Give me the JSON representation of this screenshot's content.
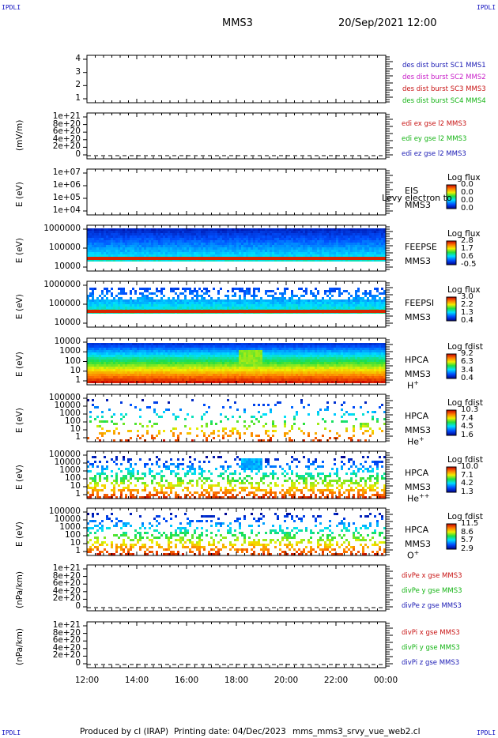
{
  "header": {
    "title": "MMS3",
    "datetime": "20/Sep/2021 12:00",
    "corner": "IPDLI"
  },
  "footer": {
    "produced_by": "Produced by cl (IRAP)",
    "printing_date": "Printing date: 04/Dec/2023",
    "filename": "mms_mms3_srvy_vue_web2.cl"
  },
  "colors": {
    "sc1": "#1a1ab4",
    "sc2": "#c81ec8",
    "sc3": "#c81414",
    "sc4": "#14b414",
    "x": "#c81414",
    "y": "#14b414",
    "z": "#1a1ab4"
  },
  "chart_data": [
    {
      "type": "line",
      "name": "burst-panel",
      "ylim": [
        0.5,
        4.5
      ],
      "ticks": [
        "4",
        "3",
        "2",
        "1"
      ],
      "legend": [
        {
          "label": "des dist burst SC1 MMS1",
          "color": "sc1"
        },
        {
          "label": "des dist burst SC2 MMS2",
          "color": "sc2"
        },
        {
          "label": "des dist burst SC3 MMS3",
          "color": "sc3"
        },
        {
          "label": "des dist burst SC4 MMS4",
          "color": "sc4"
        }
      ]
    },
    {
      "type": "line",
      "name": "edi-efield-panel",
      "ylabel": "(mV/m)",
      "ticks": [
        "1e+21",
        "8e+20",
        "6e+20",
        "4e+20",
        "2e+20",
        "0"
      ],
      "series": [
        {
          "name": "edi ex gse l2 MMS3",
          "color": "x"
        },
        {
          "name": "edi ey gse l2 MMS3",
          "color": "y"
        },
        {
          "name": "edi ez gse l2 MMS3",
          "color": "z"
        }
      ]
    },
    {
      "type": "heatmap",
      "name": "eis-panel",
      "ylabel": "E (eV)",
      "scale": "log",
      "ticks": [
        "1e+07",
        "1e+06",
        "1e+05",
        "1e+04"
      ],
      "side": [
        "EIS",
        "MMS3"
      ],
      "overlay_text": "Levy electron to",
      "colorbar_title": "Log flux",
      "colorbar_ticks": [
        "0.0",
        "0.0",
        "0.0",
        "0.0"
      ]
    },
    {
      "type": "heatmap",
      "name": "feeps-electron-panel",
      "ylabel": "E (eV)",
      "scale": "log",
      "ylim": [
        10000,
        1000000
      ],
      "ticks": [
        "1000000",
        "100000",
        "10000"
      ],
      "side": [
        "FEEPSE",
        "MMS3"
      ],
      "colorbar_title": "Log flux",
      "colorbar_ticks": [
        "2.8",
        "1.7",
        "0.6",
        "-0.5"
      ]
    },
    {
      "type": "heatmap",
      "name": "feeps-ion-panel",
      "ylabel": "E (eV)",
      "scale": "log",
      "ylim": [
        10000,
        1000000
      ],
      "ticks": [
        "1000000",
        "100000",
        "10000"
      ],
      "side": [
        "FEEPSI",
        "MMS3"
      ],
      "colorbar_title": "Log flux",
      "colorbar_ticks": [
        "3.0",
        "2.2",
        "1.3",
        "0.4"
      ]
    },
    {
      "type": "heatmap",
      "name": "hpca-h-panel",
      "ylabel": "E (eV)",
      "scale": "log",
      "ylim": [
        1,
        10000
      ],
      "ticks": [
        "10000",
        "1000",
        "100",
        "10",
        "1"
      ],
      "side": [
        "HPCA",
        "MMS3"
      ],
      "species": "H",
      "species_sup": "+",
      "colorbar_title": "Log fdist",
      "colorbar_ticks": [
        "9.2",
        "6.3",
        "3.4",
        "0.4"
      ]
    },
    {
      "type": "heatmap",
      "name": "hpca-he-panel",
      "ylabel": "E (eV)",
      "scale": "log",
      "ylim": [
        1,
        100000
      ],
      "ticks": [
        "100000",
        "10000",
        "1000",
        "100",
        "10",
        "1"
      ],
      "side": [
        "HPCA",
        "MMS3"
      ],
      "species": "He",
      "species_sup": "+",
      "colorbar_title": "Log fdist",
      "colorbar_ticks": [
        "10.3",
        "7.4",
        "4.5",
        "1.6"
      ]
    },
    {
      "type": "heatmap",
      "name": "hpca-he2-panel",
      "ylabel": "E (eV)",
      "scale": "log",
      "ylim": [
        1,
        100000
      ],
      "ticks": [
        "100000",
        "10000",
        "1000",
        "100",
        "10",
        "1"
      ],
      "side": [
        "HPCA",
        "MMS3"
      ],
      "species": "He",
      "species_sup": "++",
      "colorbar_title": "Log fdist",
      "colorbar_ticks": [
        "10.0",
        "7.1",
        "4.2",
        "1.3"
      ]
    },
    {
      "type": "heatmap",
      "name": "hpca-o-panel",
      "ylabel": "E (eV)",
      "scale": "log",
      "ylim": [
        1,
        100000
      ],
      "ticks": [
        "100000",
        "10000",
        "1000",
        "100",
        "10",
        "1"
      ],
      "side": [
        "HPCA",
        "MMS3"
      ],
      "species": "O",
      "species_sup": "+",
      "colorbar_title": "Log fdist",
      "colorbar_ticks": [
        "11.5",
        "8.6",
        "5.7",
        "2.9"
      ]
    },
    {
      "type": "line",
      "name": "divpe-panel",
      "ylabel": "(nPa/km)",
      "ticks": [
        "1e+21",
        "8e+20",
        "6e+20",
        "4e+20",
        "2e+20",
        "0"
      ],
      "series": [
        {
          "name": "divPe x gse MMS3",
          "color": "x"
        },
        {
          "name": "divPe y gse MMS3",
          "color": "y"
        },
        {
          "name": "divPe z gse MMS3",
          "color": "z"
        }
      ]
    },
    {
      "type": "line",
      "name": "divpi-panel",
      "ylabel": "(nPa/km)",
      "ticks": [
        "1e+21",
        "8e+20",
        "6e+20",
        "4e+20",
        "2e+20",
        "0"
      ],
      "series": [
        {
          "name": "divPi x gse MMS3",
          "color": "x"
        },
        {
          "name": "divPi y gse MMS3",
          "color": "y"
        },
        {
          "name": "divPi z gse MMS3",
          "color": "z"
        }
      ]
    }
  ],
  "x_axis": {
    "ticks": [
      "12:00",
      "14:00",
      "16:00",
      "18:00",
      "20:00",
      "22:00",
      "00:00"
    ]
  }
}
